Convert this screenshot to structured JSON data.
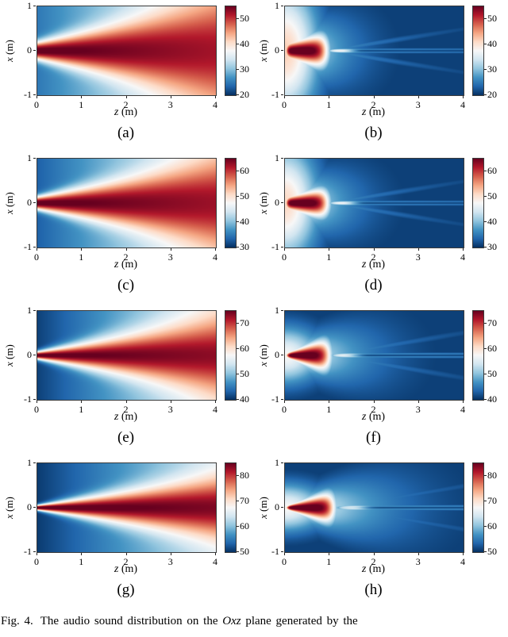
{
  "figure_title": "Fig. 4",
  "axes": {
    "xlabel_var": "z",
    "xlabel_unit": "(m)",
    "ylabel_var": "x",
    "ylabel_unit": "(m)",
    "x_range": [
      0,
      4
    ],
    "y_range": [
      -1,
      1
    ],
    "x_ticks": [
      0,
      1,
      2,
      3,
      4
    ],
    "y_ticks": [
      1,
      0,
      -1
    ]
  },
  "colormap": {
    "name": "red-blue-diverging (blue=low, red=high)",
    "stops": [
      "#053061",
      "#2166ac",
      "#4393c3",
      "#92c5de",
      "#d1e5f0",
      "#f7f7f7",
      "#fddbc7",
      "#f4a582",
      "#d6604d",
      "#b2182b",
      "#67001f"
    ]
  },
  "chart_data": [
    {
      "label": "(a)",
      "type": "heatmap",
      "field": "smooth_beam",
      "clim": [
        20,
        55
      ],
      "colorbar_ticks": [
        20,
        30,
        40,
        50
      ],
      "params": {
        "w0": 0.2,
        "ws": 0.21,
        "pw": 2.2,
        "tf0": 0.14,
        "tf1": 0.57,
        "tc0": 1.03,
        "tc1": 0.92
      }
    },
    {
      "label": "(b)",
      "type": "heatmap",
      "field": "nonlinear_beam",
      "clim": [
        20,
        55
      ],
      "colorbar_ticks": [
        20,
        30,
        40,
        50
      ],
      "params": {
        "ga": 0.62,
        "zg": 0.74,
        "xg": 1.45,
        "ha": 0.55,
        "hw0": 0.5,
        "hws": 0.32,
        "hz": 1.2,
        "z0": 0.02,
        "z1": 0.92,
        "xw0": 0.18,
        "xws": 0.27,
        "zp": 0.95,
        "wa": 0.2,
        "wslope": 0.16,
        "ww": 0.07,
        "sa": 0.33,
        "hot": 0.27,
        "zh": 1.3,
        "sw": 0.045
      }
    },
    {
      "label": "(c)",
      "type": "heatmap",
      "field": "smooth_beam",
      "clim": [
        30,
        65
      ],
      "colorbar_ticks": [
        30,
        40,
        50,
        60
      ],
      "params": {
        "w0": 0.15,
        "ws": 0.19,
        "pw": 2.2,
        "tf0": 0.09,
        "tf1": 0.53,
        "tc0": 1.03,
        "tc1": 0.93
      }
    },
    {
      "label": "(d)",
      "type": "heatmap",
      "field": "nonlinear_beam",
      "clim": [
        30,
        65
      ],
      "colorbar_ticks": [
        30,
        40,
        50,
        60
      ],
      "params": {
        "ga": 0.6,
        "zg": 0.72,
        "xg": 1.25,
        "ha": 0.55,
        "hw0": 0.45,
        "hws": 0.3,
        "hz": 1.25,
        "z0": 0.02,
        "z1": 0.94,
        "xw0": 0.15,
        "xws": 0.24,
        "zp": 0.97,
        "wa": 0.2,
        "wslope": 0.16,
        "ww": 0.07,
        "sa": 0.34,
        "hot": 0.27,
        "zh": 1.35,
        "sw": 0.045
      }
    },
    {
      "label": "(e)",
      "type": "heatmap",
      "field": "smooth_beam",
      "clim": [
        40,
        75
      ],
      "colorbar_ticks": [
        40,
        50,
        60,
        70
      ],
      "params": {
        "w0": 0.09,
        "ws": 0.18,
        "pw": 2.0,
        "tf0": 0.03,
        "tf1": 0.48,
        "tc0": 1.03,
        "tc1": 0.95
      }
    },
    {
      "label": "(f)",
      "type": "heatmap",
      "field": "nonlinear_beam",
      "clim": [
        40,
        75
      ],
      "colorbar_ticks": [
        40,
        50,
        60,
        70
      ],
      "params": {
        "ga": 0.5,
        "zg": 0.82,
        "xg": 0.62,
        "ha": 0.52,
        "hw0": 0.3,
        "hws": 0.32,
        "hz": 1.6,
        "z0": 0.03,
        "z1": 0.98,
        "xw0": 0.05,
        "xws": 0.38,
        "zp": 1.02,
        "wa": 0.22,
        "wslope": 0.17,
        "ww": 0.08,
        "sa": 0.35,
        "hot": 0.25,
        "zh": 1.4,
        "sw": 0.05
      }
    },
    {
      "label": "(g)",
      "type": "heatmap",
      "field": "smooth_beam",
      "clim": [
        50,
        85
      ],
      "colorbar_ticks": [
        50,
        60,
        70,
        80
      ],
      "params": {
        "w0": 0.06,
        "ws": 0.155,
        "pw": 2.0,
        "tf0": 0.02,
        "tf1": 0.4,
        "tc0": 1.05,
        "tc1": 0.97
      }
    },
    {
      "label": "(h)",
      "type": "heatmap",
      "field": "nonlinear_beam",
      "clim": [
        50,
        85
      ],
      "colorbar_ticks": [
        50,
        60,
        70,
        80
      ],
      "params": {
        "ga": 0.5,
        "zg": 0.92,
        "xg": 0.52,
        "ha": 0.52,
        "hw0": 0.22,
        "hws": 0.32,
        "hz": 2.0,
        "z0": 0.03,
        "z1": 1.08,
        "xw0": 0.04,
        "xws": 0.34,
        "zp": 1.15,
        "wa": 0.24,
        "wslope": 0.17,
        "ww": 0.08,
        "sa": 0.38,
        "hot": 0.28,
        "zh": 1.55,
        "sw": 0.05
      }
    }
  ],
  "caption": {
    "fig_label": "Fig. 4.",
    "text_before": "The audio sound distribution on the ",
    "math": "Oxz",
    "text_after": " plane generated by the"
  }
}
